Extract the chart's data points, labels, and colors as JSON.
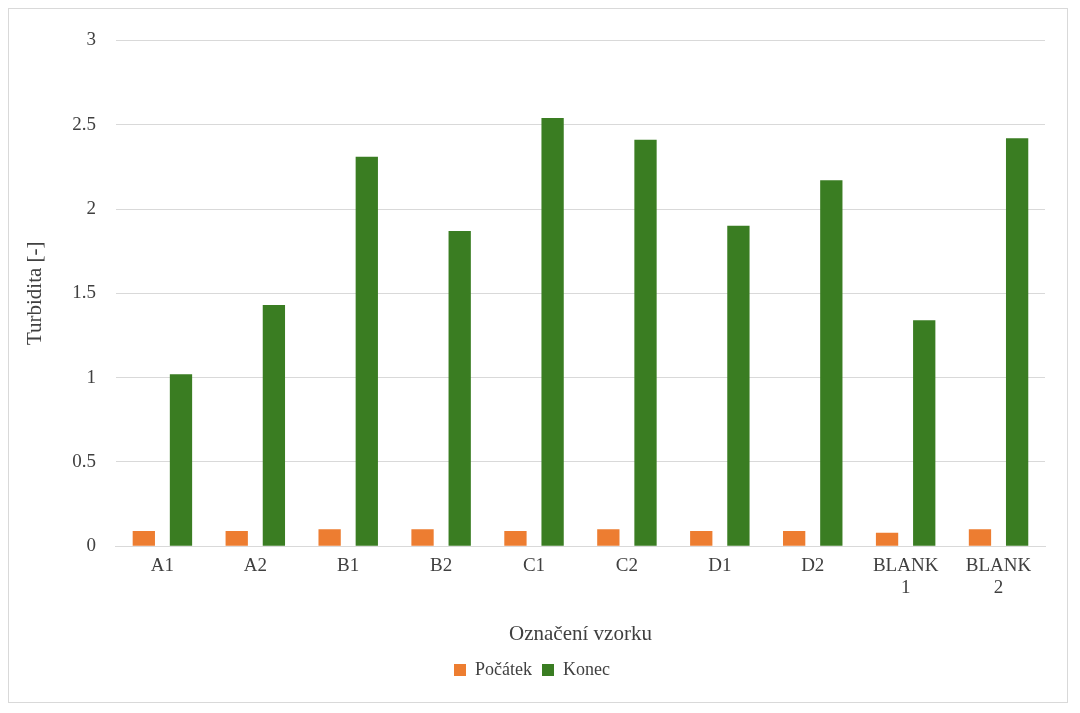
{
  "chart_data": {
    "type": "bar",
    "xlabel": "Označení vzorku",
    "ylabel": "Turbidita [-]",
    "categories": [
      "A1",
      "A2",
      "B1",
      "B2",
      "C1",
      "C2",
      "D1",
      "D2",
      "BLANK 1",
      "BLANK 2"
    ],
    "series": [
      {
        "name": "Počátek",
        "color": "#ed7d31",
        "values": [
          0.09,
          0.09,
          0.1,
          0.1,
          0.09,
          0.1,
          0.09,
          0.09,
          0.08,
          0.1
        ]
      },
      {
        "name": "Konec",
        "color": "#3a7d22",
        "values": [
          1.02,
          1.43,
          2.31,
          1.87,
          2.54,
          2.41,
          1.9,
          2.17,
          1.34,
          2.42
        ]
      }
    ],
    "ylim": [
      0,
      3
    ],
    "yticks": [
      0,
      0.5,
      1,
      1.5,
      2,
      2.5,
      3
    ],
    "grid": "y",
    "legend": "bottom"
  }
}
